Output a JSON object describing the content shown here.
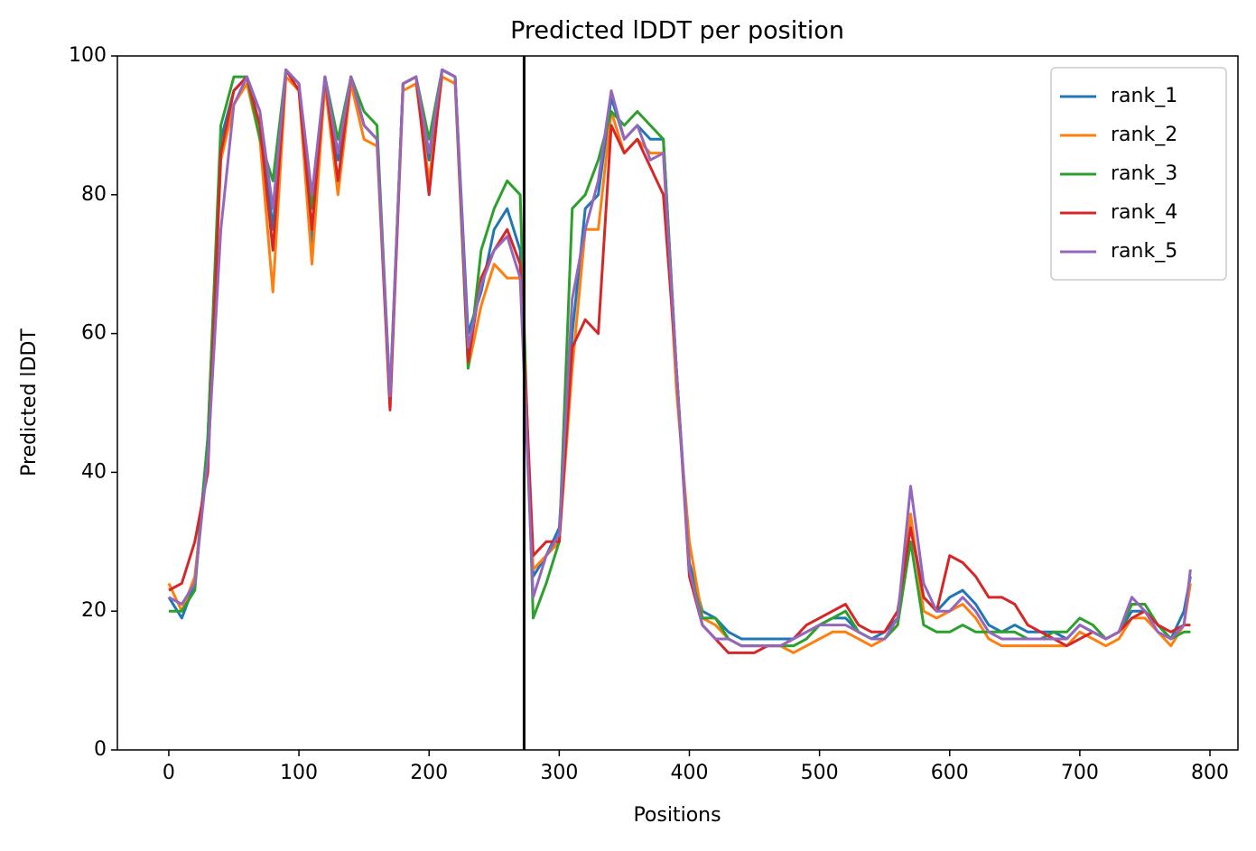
{
  "chart_data": {
    "type": "line",
    "title": "Predicted lDDT per position",
    "xlabel": "Positions",
    "ylabel": "Predicted lDDT",
    "x": [
      0,
      10,
      20,
      30,
      40,
      50,
      60,
      70,
      80,
      90,
      100,
      110,
      120,
      130,
      140,
      150,
      160,
      170,
      180,
      190,
      200,
      210,
      220,
      230,
      240,
      250,
      260,
      270,
      280,
      290,
      300,
      310,
      320,
      330,
      340,
      350,
      360,
      370,
      380,
      390,
      400,
      410,
      420,
      430,
      440,
      450,
      460,
      470,
      480,
      490,
      500,
      510,
      520,
      530,
      540,
      550,
      560,
      570,
      580,
      590,
      600,
      610,
      620,
      630,
      640,
      650,
      660,
      670,
      680,
      690,
      700,
      710,
      720,
      730,
      740,
      750,
      760,
      770,
      780,
      785
    ],
    "series": [
      {
        "name": "rank_1",
        "color": "#1f77b4",
        "values": [
          22,
          19,
          24,
          45,
          88,
          95,
          97,
          92,
          75,
          98,
          96,
          72,
          97,
          85,
          97,
          90,
          88,
          50,
          96,
          97,
          85,
          98,
          97,
          60,
          66,
          75,
          78,
          72,
          25,
          28,
          32,
          60,
          78,
          80,
          94,
          88,
          90,
          88,
          88,
          55,
          27,
          20,
          19,
          17,
          16,
          16,
          16,
          16,
          16,
          17,
          18,
          19,
          19,
          17,
          16,
          17,
          19,
          33,
          22,
          20,
          22,
          23,
          21,
          18,
          17,
          18,
          17,
          17,
          17,
          16,
          18,
          17,
          16,
          17,
          20,
          20,
          18,
          16,
          20,
          25
        ]
      },
      {
        "name": "rank_2",
        "color": "#ff7f0e",
        "values": [
          24,
          20,
          25,
          42,
          85,
          93,
          96,
          88,
          66,
          97,
          95,
          70,
          96,
          80,
          96,
          88,
          87,
          49,
          95,
          96,
          82,
          97,
          96,
          55,
          64,
          70,
          68,
          68,
          26,
          28,
          30,
          55,
          75,
          75,
          92,
          86,
          88,
          86,
          86,
          52,
          30,
          19,
          18,
          16,
          15,
          15,
          15,
          15,
          14,
          15,
          16,
          17,
          17,
          16,
          15,
          16,
          18,
          34,
          20,
          19,
          20,
          21,
          19,
          16,
          15,
          15,
          15,
          15,
          15,
          15,
          17,
          16,
          15,
          16,
          19,
          19,
          17,
          15,
          18,
          24
        ]
      },
      {
        "name": "rank_3",
        "color": "#2ca02c",
        "values": [
          20,
          20,
          23,
          45,
          90,
          97,
          97,
          88,
          82,
          98,
          96,
          78,
          97,
          88,
          97,
          92,
          90,
          51,
          96,
          97,
          88,
          98,
          97,
          55,
          72,
          78,
          82,
          80,
          19,
          24,
          30,
          78,
          80,
          85,
          92,
          90,
          92,
          90,
          88,
          55,
          26,
          19,
          19,
          16,
          15,
          15,
          15,
          15,
          15,
          16,
          18,
          19,
          20,
          17,
          16,
          16,
          18,
          30,
          18,
          17,
          17,
          18,
          17,
          17,
          17,
          17,
          16,
          16,
          17,
          17,
          19,
          18,
          16,
          17,
          21,
          21,
          18,
          16,
          17,
          17
        ]
      },
      {
        "name": "rank_4",
        "color": "#d62728",
        "values": [
          23,
          24,
          30,
          40,
          86,
          95,
          97,
          90,
          72,
          98,
          95,
          75,
          97,
          82,
          97,
          90,
          88,
          49,
          96,
          97,
          80,
          98,
          97,
          56,
          68,
          72,
          75,
          70,
          28,
          30,
          30,
          58,
          62,
          60,
          90,
          86,
          88,
          84,
          80,
          55,
          25,
          18,
          16,
          14,
          14,
          14,
          15,
          15,
          16,
          18,
          19,
          20,
          21,
          18,
          17,
          17,
          20,
          32,
          22,
          20,
          28,
          27,
          25,
          22,
          22,
          21,
          18,
          17,
          16,
          15,
          16,
          17,
          16,
          17,
          19,
          20,
          18,
          17,
          18,
          18
        ]
      },
      {
        "name": "rank_5",
        "color": "#9467bd",
        "values": [
          22,
          21,
          24,
          42,
          75,
          93,
          97,
          92,
          78,
          98,
          96,
          80,
          97,
          86,
          97,
          90,
          88,
          51,
          96,
          97,
          86,
          98,
          97,
          58,
          67,
          72,
          74,
          68,
          22,
          28,
          31,
          65,
          75,
          82,
          95,
          88,
          90,
          85,
          86,
          55,
          26,
          18,
          16,
          16,
          15,
          15,
          15,
          15,
          16,
          17,
          18,
          18,
          18,
          17,
          16,
          16,
          19,
          38,
          24,
          20,
          20,
          22,
          20,
          17,
          16,
          16,
          16,
          16,
          16,
          16,
          18,
          17,
          16,
          17,
          22,
          20,
          17,
          16,
          18,
          26
        ]
      }
    ],
    "vline": 273,
    "vline_color": "#000000",
    "xlim": [
      -39.5,
      821.5
    ],
    "xticks": [
      0,
      100,
      200,
      300,
      400,
      500,
      600,
      700,
      800
    ],
    "ylim": [
      0,
      100
    ],
    "yticks": [
      0,
      20,
      40,
      60,
      80,
      100
    ],
    "legend": "upper right"
  }
}
